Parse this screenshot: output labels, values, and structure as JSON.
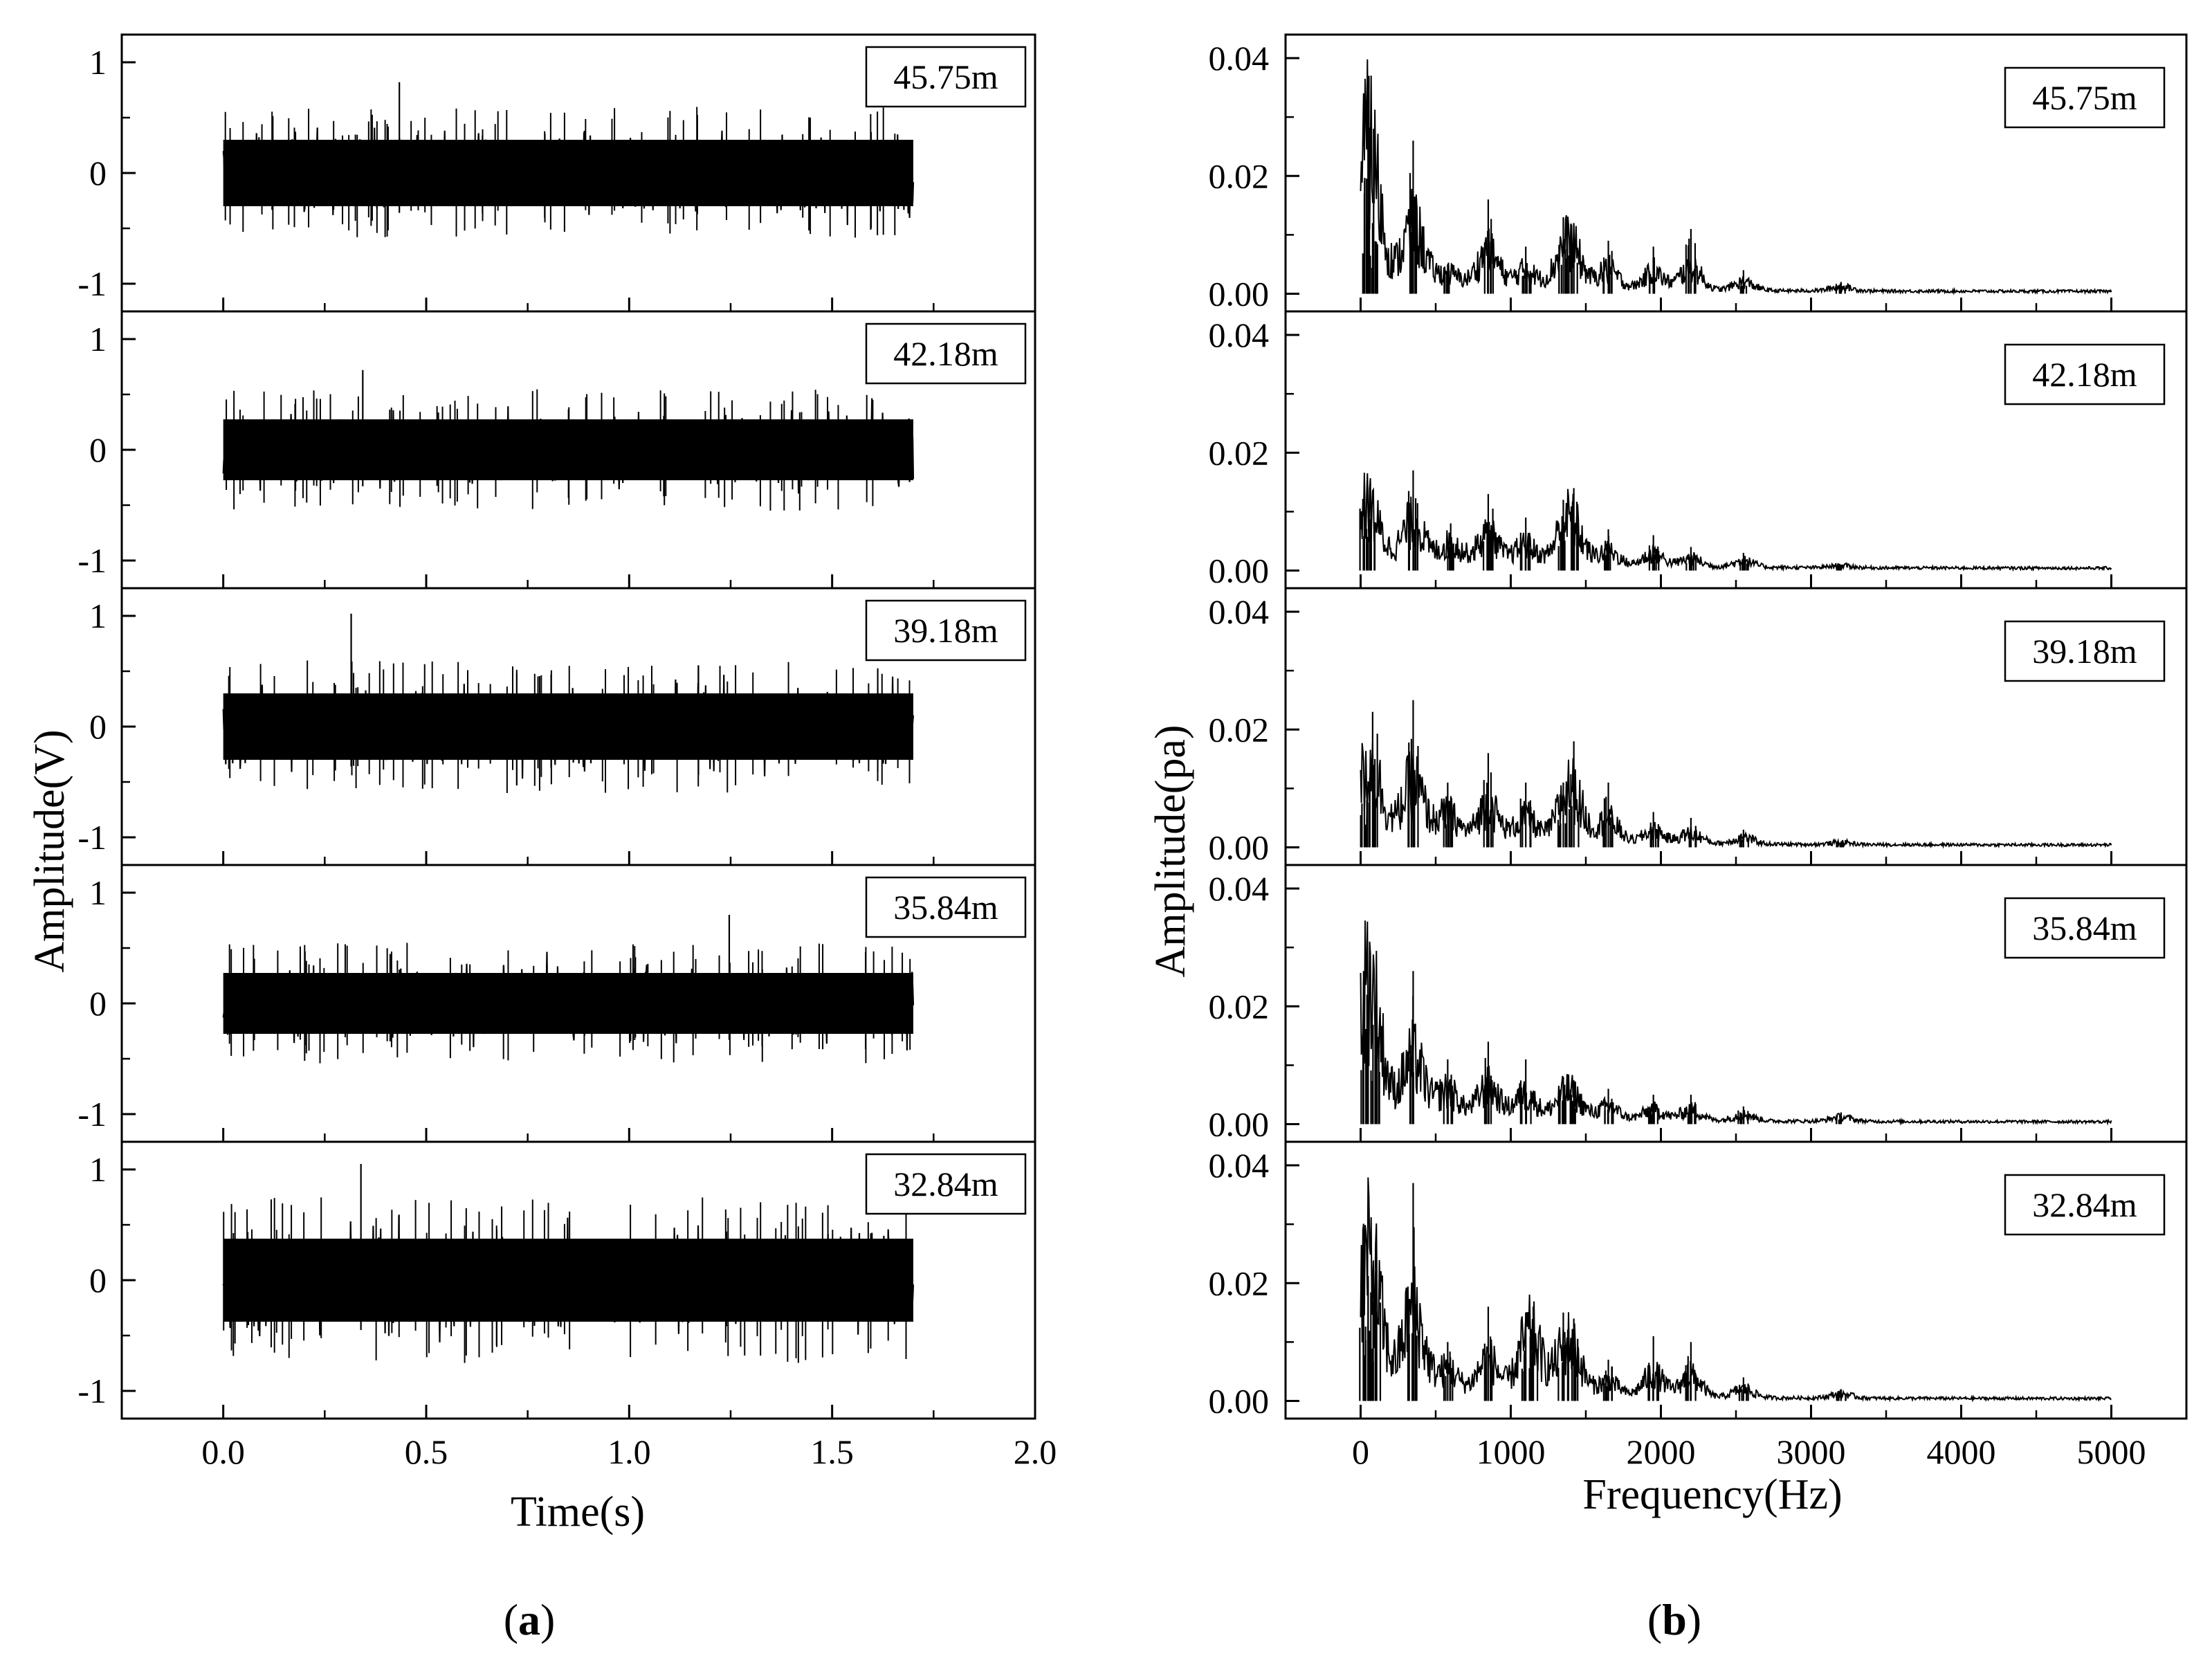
{
  "figure": {
    "panels": [
      {
        "caption_letter": "a",
        "caption_open": "(",
        "caption_close": ")"
      },
      {
        "caption_letter": "b",
        "caption_open": "(",
        "caption_close": ")"
      }
    ]
  },
  "chart_data": [
    {
      "type": "line",
      "panel": "a",
      "description": "Time-domain signal, five stacked subplots sharing the time axis",
      "xlabel": "Time(s)",
      "ylabel": "Amplitude(V)",
      "xlim": [
        -0.25,
        2.0
      ],
      "ylim": [
        -1.25,
        1.25
      ],
      "xticks": [
        0.0,
        0.5,
        1.0,
        1.5,
        2.0
      ],
      "xtick_labels": [
        "0.0",
        "0.5",
        "1.0",
        "1.5",
        "2.0"
      ],
      "yticks": [
        -1,
        0,
        1
      ],
      "ytick_labels": [
        "-1",
        "0",
        "1"
      ],
      "signal_span_s": [
        0.0,
        1.7
      ],
      "grid": false,
      "subplots": [
        {
          "label": "45.75m",
          "peak_abs": 0.82,
          "typical_abs": 0.6
        },
        {
          "label": "42.18m",
          "peak_abs": 0.72,
          "typical_abs": 0.55
        },
        {
          "label": "39.18m",
          "peak_abs": 1.02,
          "typical_abs": 0.6
        },
        {
          "label": "35.84m",
          "peak_abs": 0.8,
          "typical_abs": 0.55
        },
        {
          "label": "32.84m",
          "peak_abs": 1.05,
          "typical_abs": 0.75
        }
      ]
    },
    {
      "type": "line",
      "panel": "b",
      "description": "Frequency spectrum, five stacked subplots sharing the frequency axis",
      "xlabel": "Frequency(Hz)",
      "ylabel": "Amplitude(pa)",
      "xlim": [
        -500,
        5500
      ],
      "ylim": [
        -0.003,
        0.044
      ],
      "xticks": [
        0,
        1000,
        2000,
        3000,
        4000,
        5000
      ],
      "xtick_labels": [
        "0",
        "1000",
        "2000",
        "3000",
        "4000",
        "5000"
      ],
      "yticks": [
        0.0,
        0.02,
        0.04
      ],
      "ytick_labels": [
        "0.00",
        "0.02",
        "0.04"
      ],
      "spectrum_span_hz": [
        0,
        5000
      ],
      "grid": false,
      "subplots": [
        {
          "label": "45.75m",
          "peaks": [
            [
              25,
              0.017
            ],
            [
              55,
              0.037
            ],
            [
              80,
              0.012
            ],
            [
              350,
              0.026
            ],
            [
              580,
              0.005
            ],
            [
              850,
              0.016
            ],
            [
              1100,
              0.008
            ],
            [
              1350,
              0.013
            ],
            [
              1420,
              0.012
            ],
            [
              1650,
              0.009
            ],
            [
              1950,
              0.008
            ],
            [
              2200,
              0.011
            ],
            [
              2550,
              0.004
            ],
            [
              3200,
              0.002
            ]
          ]
        },
        {
          "label": "42.18m",
          "peaks": [
            [
              25,
              0.013
            ],
            [
              70,
              0.011
            ],
            [
              350,
              0.017
            ],
            [
              600,
              0.008
            ],
            [
              850,
              0.013
            ],
            [
              1100,
              0.009
            ],
            [
              1350,
              0.012
            ],
            [
              1420,
              0.014
            ],
            [
              1650,
              0.007
            ],
            [
              1950,
              0.006
            ],
            [
              2200,
              0.004
            ],
            [
              2550,
              0.003
            ],
            [
              3200,
              0.001
            ]
          ]
        },
        {
          "label": "39.18m",
          "peaks": [
            [
              25,
              0.011
            ],
            [
              80,
              0.023
            ],
            [
              350,
              0.025
            ],
            [
              580,
              0.011
            ],
            [
              850,
              0.016
            ],
            [
              1100,
              0.011
            ],
            [
              1350,
              0.011
            ],
            [
              1420,
              0.018
            ],
            [
              1650,
              0.011
            ],
            [
              1950,
              0.006
            ],
            [
              2200,
              0.005
            ],
            [
              2550,
              0.003
            ],
            [
              3200,
              0.001
            ]
          ]
        },
        {
          "label": "35.84m",
          "peaks": [
            [
              20,
              0.026
            ],
            [
              50,
              0.021
            ],
            [
              100,
              0.02
            ],
            [
              350,
              0.026
            ],
            [
              580,
              0.011
            ],
            [
              850,
              0.014
            ],
            [
              1100,
              0.011
            ],
            [
              1350,
              0.008
            ],
            [
              1420,
              0.007
            ],
            [
              1650,
              0.006
            ],
            [
              1950,
              0.005
            ],
            [
              2200,
              0.005
            ],
            [
              2550,
              0.003
            ],
            [
              3200,
              0.002
            ]
          ]
        },
        {
          "label": "32.84m",
          "peaks": [
            [
              20,
              0.025
            ],
            [
              50,
              0.02
            ],
            [
              100,
              0.022
            ],
            [
              350,
              0.037
            ],
            [
              580,
              0.01
            ],
            [
              850,
              0.016
            ],
            [
              1100,
              0.015
            ],
            [
              1150,
              0.016
            ],
            [
              1350,
              0.015
            ],
            [
              1420,
              0.014
            ],
            [
              1650,
              0.007
            ],
            [
              1950,
              0.011
            ],
            [
              2200,
              0.01
            ],
            [
              2550,
              0.004
            ],
            [
              3200,
              0.002
            ]
          ]
        }
      ]
    }
  ]
}
